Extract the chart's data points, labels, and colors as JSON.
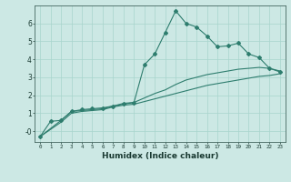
{
  "title": "",
  "xlabel": "Humidex (Indice chaleur)",
  "background_color": "#cce8e4",
  "line_color": "#2e7d6e",
  "grid_color": "#a8d4cc",
  "xlim": [
    -0.5,
    23.5
  ],
  "ylim": [
    -0.6,
    7.0
  ],
  "yticks": [
    0,
    1,
    2,
    3,
    4,
    5,
    6
  ],
  "ytick_labels": [
    "-0",
    "1",
    "2",
    "3",
    "4",
    "5",
    "6"
  ],
  "xticks": [
    0,
    1,
    2,
    3,
    4,
    5,
    6,
    7,
    8,
    9,
    10,
    11,
    12,
    13,
    14,
    15,
    16,
    17,
    18,
    19,
    20,
    21,
    22,
    23
  ],
  "line1_x": [
    0,
    1,
    2,
    3,
    4,
    5,
    6,
    7,
    8,
    9,
    10,
    11,
    12,
    13,
    14,
    15,
    16,
    17,
    18,
    19,
    20,
    21,
    22,
    23
  ],
  "line1_y": [
    -0.3,
    0.55,
    0.6,
    1.1,
    1.2,
    1.25,
    1.3,
    1.4,
    1.55,
    1.6,
    3.7,
    4.3,
    5.5,
    6.7,
    6.0,
    5.8,
    5.3,
    4.7,
    4.75,
    4.9,
    4.3,
    4.1,
    3.5,
    3.3
  ],
  "line2_x": [
    0,
    2,
    3,
    4,
    5,
    6,
    7,
    8,
    9,
    10,
    11,
    12,
    13,
    14,
    15,
    16,
    17,
    18,
    19,
    20,
    21,
    22,
    23
  ],
  "line2_y": [
    -0.3,
    0.6,
    1.1,
    1.15,
    1.2,
    1.25,
    1.4,
    1.5,
    1.6,
    1.85,
    2.1,
    2.3,
    2.6,
    2.85,
    3.0,
    3.15,
    3.25,
    3.35,
    3.45,
    3.5,
    3.55,
    3.5,
    3.35
  ],
  "line3_x": [
    0,
    2,
    3,
    4,
    5,
    6,
    7,
    8,
    9,
    10,
    11,
    12,
    13,
    14,
    15,
    16,
    17,
    18,
    19,
    20,
    21,
    22,
    23
  ],
  "line3_y": [
    -0.3,
    0.5,
    1.0,
    1.1,
    1.15,
    1.2,
    1.35,
    1.45,
    1.5,
    1.65,
    1.8,
    1.95,
    2.1,
    2.25,
    2.4,
    2.55,
    2.65,
    2.75,
    2.85,
    2.95,
    3.05,
    3.1,
    3.2
  ]
}
